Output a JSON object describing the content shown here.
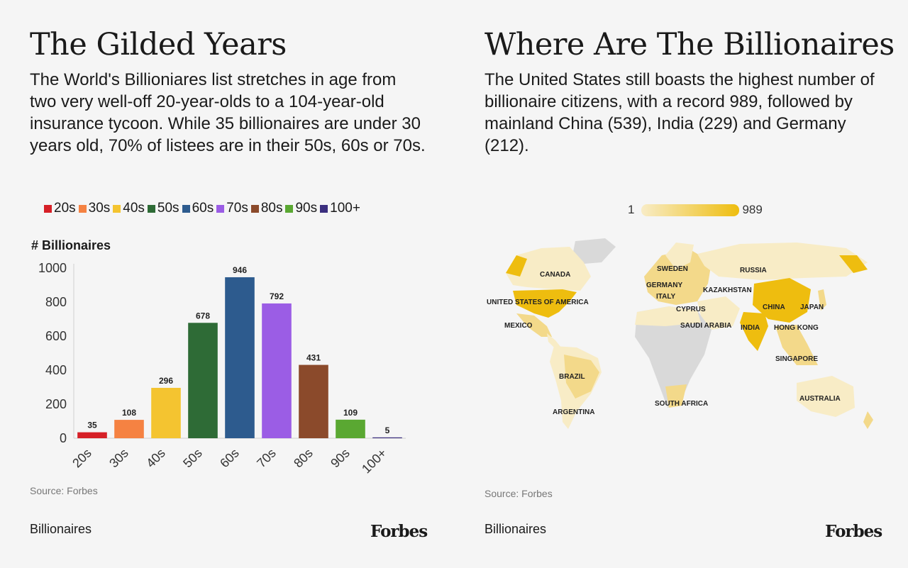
{
  "left": {
    "title": "The Gilded Years",
    "description": "The World's Billioniares list stretches in age from two very well-off 20-year-olds to a 104-year-old insurance tycoon. While 35 billionaires are under 30 years old, 70% of listees are in their 50s, 60s or 70s.",
    "source": "Source: Forbes",
    "footer_category": "Billionaires",
    "logo": "Forbes"
  },
  "right": {
    "title": "Where Are The Billionaires",
    "description": "The United States still boasts the highest number of billionaire citizens, with a record 989, followed by mainland China (539), India (229) and Germany (212).",
    "scale_min": "1",
    "scale_max": "989",
    "source": "Source: Forbes",
    "footer_category": "Billionaires",
    "logo": "Forbes",
    "map_labels": [
      "CANADA",
      "UNITED STATES OF AMERICA",
      "MEXICO",
      "BRAZIL",
      "ARGENTINA",
      "SWEDEN",
      "GERMANY",
      "ITALY",
      "CYPRUS",
      "SAUDI ARABIA",
      "SOUTH AFRICA",
      "RUSSIA",
      "KAZAKHSTAN",
      "CHINA",
      "JAPAN",
      "INDIA",
      "HONG KONG",
      "SINGAPORE",
      "AUSTRALIA"
    ],
    "colors": {
      "low": "#f8ecc6",
      "high": "#eebd0f",
      "no_data": "#d9d9d9"
    }
  },
  "chart_data": [
    {
      "type": "bar",
      "title": "",
      "xlabel": "",
      "ylabel": "# Billionaires",
      "categories": [
        "20s",
        "30s",
        "40s",
        "50s",
        "60s",
        "70s",
        "80s",
        "90s",
        "100+"
      ],
      "values": [
        35,
        108,
        296,
        678,
        946,
        792,
        431,
        109,
        5
      ],
      "colors": [
        "#d62027",
        "#f58242",
        "#f4c430",
        "#2e6b36",
        "#2d5b8e",
        "#9b5de5",
        "#8b4a2b",
        "#5aa832",
        "#3b2e7e"
      ],
      "ylim": [
        0,
        1000
      ],
      "yticks": [
        0,
        200,
        400,
        600,
        800,
        1000
      ],
      "grid": false,
      "legend": "top"
    }
  ]
}
